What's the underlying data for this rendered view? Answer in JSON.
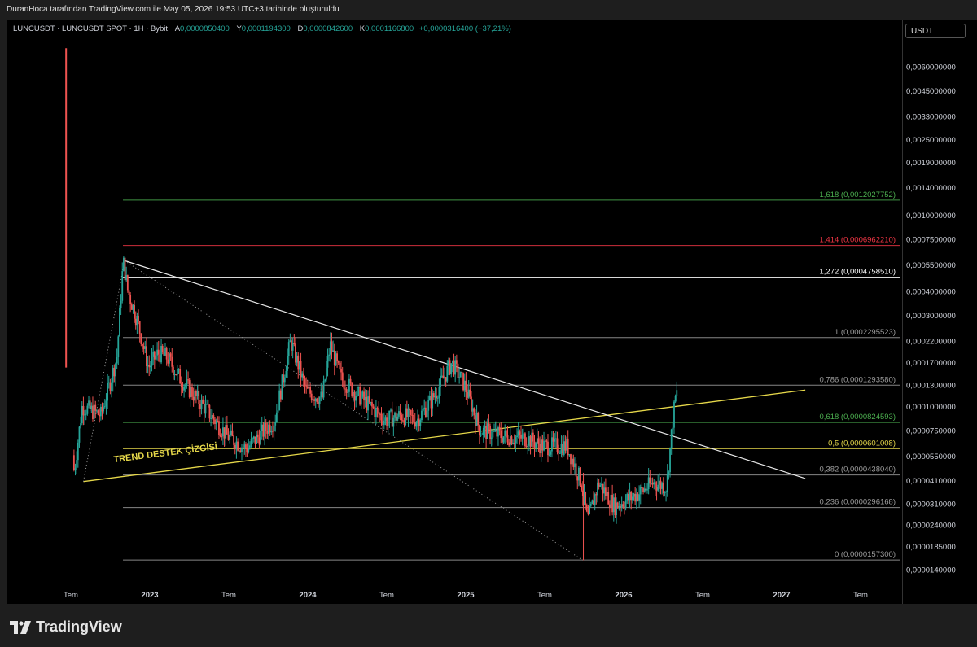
{
  "header": {
    "attribution": "DuranHoca tarafından TradingView.com ile May 05, 2026 19:53 UTC+3 tarihinde oluşturuldu"
  },
  "legend": {
    "symbol": "LUNCUSDT · LUNCUSDT SPOT · 1H · Bybit",
    "open_label": "A",
    "open": "0,0000850400",
    "high_label": "Y",
    "high": "0,0001194300",
    "low_label": "D",
    "low": "0,0000842600",
    "close_label": "K",
    "close": "0,0001166800",
    "change": "+0,0000316400 (+37,21%)"
  },
  "currency": "USDT",
  "branding": {
    "logo_text": "TradingView"
  },
  "colors": {
    "up": "#26a69a",
    "down": "#ef5350",
    "trend": "#e6d84a",
    "fib_green": "#4caf50",
    "fib_red": "#f23645"
  },
  "chart_data": {
    "type": "candlestick",
    "symbol": "LUNCUSDT",
    "price_scale": "log",
    "price_ticks": [
      "0,0060000000",
      "0,0045000000",
      "0,0033000000",
      "0,0025000000",
      "0,0019000000",
      "0,0014000000",
      "0,0010000000",
      "0,0007500000",
      "0,0005500000",
      "0,0004000000",
      "0,0003000000",
      "0,0002200000",
      "0,0001700000",
      "0,0001300000",
      "0,0001000000",
      "0,0000750000",
      "0,0000550000",
      "0,0000410000",
      "0,0000310000",
      "0,0000240000",
      "0,0000185000",
      "0,0000140000"
    ],
    "time_ticks": [
      "Tem",
      "2023",
      "Tem",
      "2024",
      "Tem",
      "2025",
      "Tem",
      "2026",
      "Tem",
      "2027",
      "Tem"
    ],
    "price_path": [
      [
        2022.45,
        0.0075
      ],
      [
        2022.47,
        0.00022
      ],
      [
        2022.5,
        8.5e-05
      ],
      [
        2022.53,
        4.5e-05
      ],
      [
        2022.58,
        0.0001
      ],
      [
        2022.7,
        9e-05
      ],
      [
        2022.8,
        0.00018
      ],
      [
        2022.84,
        0.00058
      ],
      [
        2022.87,
        0.0004
      ],
      [
        2022.93,
        0.00028
      ],
      [
        2023.0,
        0.00016
      ],
      [
        2023.06,
        0.00019
      ],
      [
        2023.12,
        0.00018
      ],
      [
        2023.2,
        0.00014
      ],
      [
        2023.35,
        0.0001
      ],
      [
        2023.5,
        7e-05
      ],
      [
        2023.62,
        6e-05
      ],
      [
        2023.8,
        8.5e-05
      ],
      [
        2023.9,
        0.00022
      ],
      [
        2024.0,
        0.00012
      ],
      [
        2024.1,
        0.00011
      ],
      [
        2024.15,
        0.00021
      ],
      [
        2024.22,
        0.00014
      ],
      [
        2024.35,
        0.00011
      ],
      [
        2024.5,
        8.5e-05
      ],
      [
        2024.6,
        9e-05
      ],
      [
        2024.7,
        8.5e-05
      ],
      [
        2024.8,
        0.00011
      ],
      [
        2024.92,
        0.00017
      ],
      [
        2025.0,
        0.00013
      ],
      [
        2025.1,
        7.5e-05
      ],
      [
        2025.25,
        7e-05
      ],
      [
        2025.4,
        6.8e-05
      ],
      [
        2025.5,
        6.2e-05
      ],
      [
        2025.65,
        6.2e-05
      ],
      [
        2025.74,
        4e-05
      ],
      [
        2025.78,
        2.5e-05
      ],
      [
        2025.85,
        4e-05
      ],
      [
        2025.95,
        3e-05
      ],
      [
        2026.1,
        3.5e-05
      ],
      [
        2026.2,
        4e-05
      ],
      [
        2026.28,
        3.8e-05
      ],
      [
        2026.32,
        8.5e-05
      ],
      [
        2026.34,
        0.000117
      ]
    ],
    "fib_levels": [
      {
        "ratio": "1,618",
        "label": "1,618 (0,0012027752)",
        "value": 0.0012027752,
        "color": "#4caf50"
      },
      {
        "ratio": "1,414",
        "label": "1,414 (0,0006962210)",
        "value": 0.000696221,
        "color": "#f23645"
      },
      {
        "ratio": "1,272",
        "label": "1,272 (0,0004758510)",
        "value": 0.000475851,
        "color": "#ffffff"
      },
      {
        "ratio": "1",
        "label": "1 (0,0002295523)",
        "value": 0.0002295523,
        "color": "#9e9e9e"
      },
      {
        "ratio": "0,786",
        "label": "0,786 (0,0001293580)",
        "value": 0.000129358,
        "color": "#9e9e9e"
      },
      {
        "ratio": "0,618",
        "label": "0,618 (0,0000824593)",
        "value": 8.24593e-05,
        "color": "#4caf50"
      },
      {
        "ratio": "0,5",
        "label": "0,5 (0,0000601008)",
        "value": 6.01008e-05,
        "color": "#e6d84a"
      },
      {
        "ratio": "0,382",
        "label": "0,382 (0,0000438040)",
        "value": 4.3804e-05,
        "color": "#9e9e9e"
      },
      {
        "ratio": "0,236",
        "label": "0,236 (0,0000296168)",
        "value": 2.96168e-05,
        "color": "#9e9e9e"
      },
      {
        "ratio": "0",
        "label": "0 (0,0000157300)",
        "value": 1.573e-05,
        "color": "#9e9e9e"
      }
    ],
    "trend_support": {
      "label": "TREND DESTEK ÇİZGİSİ",
      "from": [
        2022.58,
        4.05e-05
      ],
      "to": [
        2027.15,
        0.000122
      ]
    },
    "resistance_line": {
      "from": [
        2022.84,
        0.00058
      ],
      "to": [
        2027.15,
        4.2e-05
      ]
    },
    "dotted_line": {
      "from": [
        2022.84,
        0.00058
      ],
      "to": [
        2025.74,
        1.57e-05
      ]
    }
  }
}
